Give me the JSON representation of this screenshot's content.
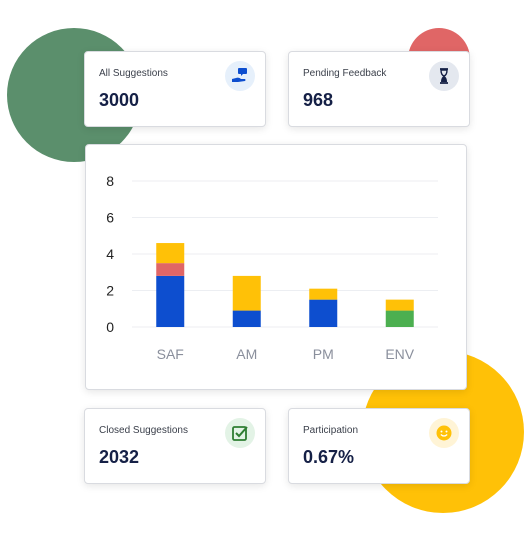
{
  "stats": {
    "all_suggestions": {
      "label": "All Suggestions",
      "value": "3000",
      "icon": "hand-chat-icon"
    },
    "pending_feedback": {
      "label": "Pending Feedback",
      "value": "968",
      "icon": "hourglass-icon"
    },
    "closed_suggestions": {
      "label": "Closed Suggestions",
      "value": "2032",
      "icon": "checkbox-icon"
    },
    "participation": {
      "label": "Participation",
      "value": "0.67%",
      "icon": "smiley-icon"
    }
  },
  "colors": {
    "blue": "#0d4ecf",
    "red": "#e06666",
    "yellow": "#ffc107",
    "green": "#4caf50",
    "navy": "#152046"
  },
  "chart_data": {
    "type": "bar",
    "stacked": true,
    "categories": [
      "SAF",
      "AM",
      "PM",
      "ENV"
    ],
    "ylim": [
      0,
      8
    ],
    "yticks": [
      0,
      2,
      4,
      6,
      8
    ],
    "grid": true,
    "segments": [
      {
        "category": "SAF",
        "stack": [
          {
            "value": 2.8,
            "color": "#0d4ecf"
          },
          {
            "value": 0.7,
            "color": "#e06666"
          },
          {
            "value": 1.1,
            "color": "#ffc107"
          }
        ]
      },
      {
        "category": "AM",
        "stack": [
          {
            "value": 0.9,
            "color": "#0d4ecf"
          },
          {
            "value": 1.9,
            "color": "#ffc107"
          }
        ]
      },
      {
        "category": "PM",
        "stack": [
          {
            "value": 1.5,
            "color": "#0d4ecf"
          },
          {
            "value": 0.6,
            "color": "#ffc107"
          }
        ]
      },
      {
        "category": "ENV",
        "stack": [
          {
            "value": 0.9,
            "color": "#4caf50"
          },
          {
            "value": 0.6,
            "color": "#ffc107"
          }
        ]
      }
    ]
  }
}
